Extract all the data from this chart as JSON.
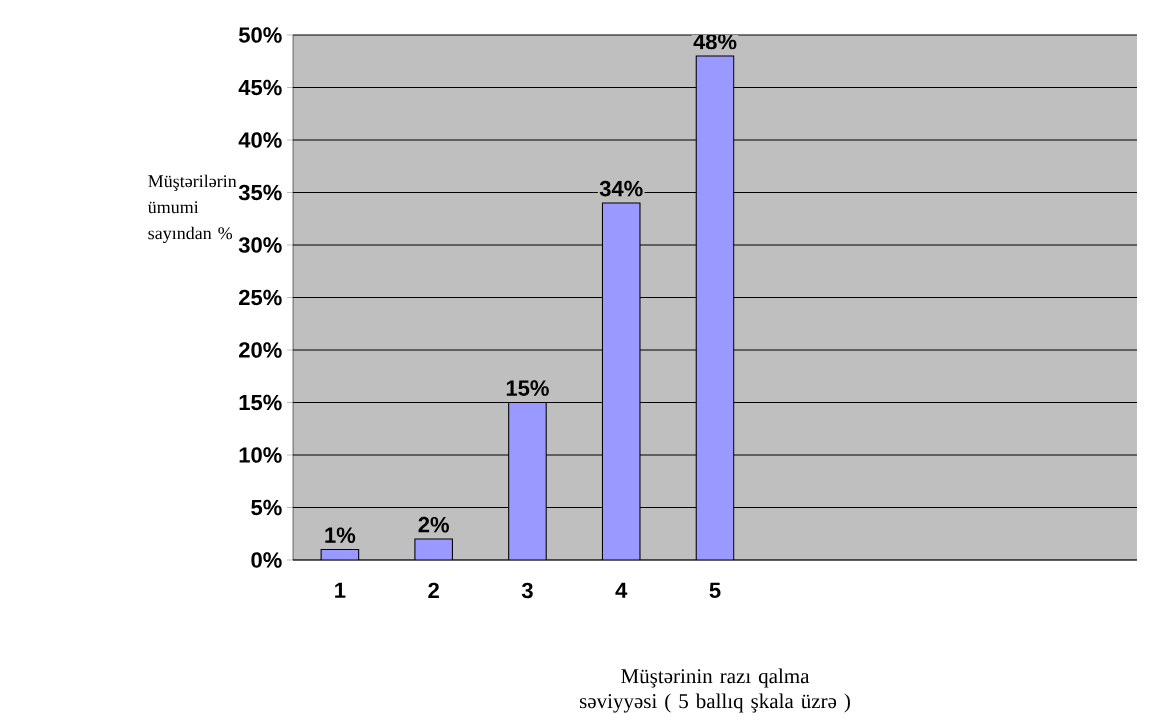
{
  "chart_data": {
    "type": "bar",
    "ylabel": "Müştərilərin ümumi sayından %",
    "xlabel": "Müştərinin razı qalma səviyyəsi ( 5 ballıq şkala üzrə )",
    "categories": [
      "1",
      "2",
      "3",
      "4",
      "5",
      null,
      null,
      null,
      null
    ],
    "values": [
      1,
      2,
      15,
      34,
      48,
      null,
      null,
      null,
      null
    ],
    "value_labels": [
      "1%",
      "2%",
      "15%",
      "34%",
      "48%",
      null,
      null,
      null,
      null
    ],
    "color": "#9999ff",
    "ylim": [
      0,
      50
    ],
    "yticks": [
      {
        "value": 0,
        "label": "0%"
      },
      {
        "value": 5,
        "label": "5%"
      },
      {
        "value": 10,
        "label": "10%"
      },
      {
        "value": 15,
        "label": "15%"
      },
      {
        "value": 20,
        "label": "20%"
      },
      {
        "value": 25,
        "label": "25%"
      },
      {
        "value": 30,
        "label": "30%"
      },
      {
        "value": 35,
        "label": "35%"
      },
      {
        "value": 40,
        "label": "40%"
      },
      {
        "value": 45,
        "label": "45%"
      },
      {
        "value": 50,
        "label": "50%"
      }
    ],
    "grid": "y"
  }
}
